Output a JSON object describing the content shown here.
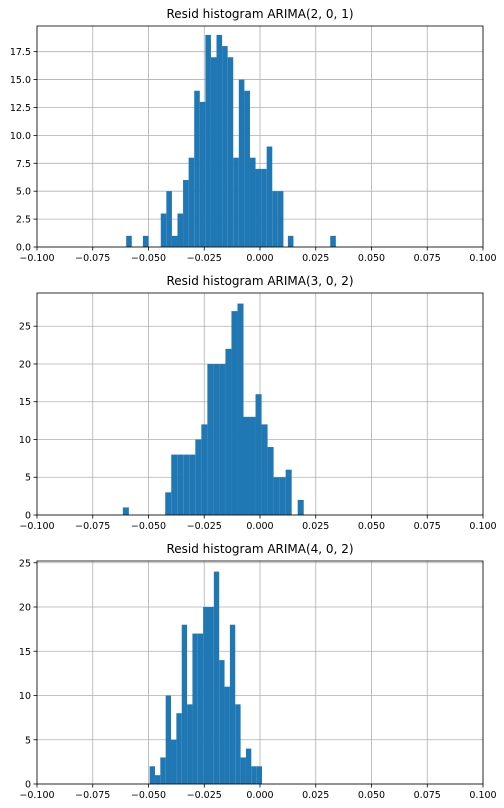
{
  "chart_data": [
    {
      "type": "bar",
      "title": "Resid histogram ARIMA(2, 0, 1)",
      "bar_color": "#1f77b4",
      "grid": true,
      "xlim": [
        -0.1,
        0.1
      ],
      "ylim": [
        0,
        19.8
      ],
      "xticks": [
        -0.1,
        -0.075,
        -0.05,
        -0.025,
        0.0,
        0.025,
        0.05,
        0.075,
        0.1
      ],
      "xtick_labels": [
        "−0.100",
        "−0.075",
        "−0.050",
        "−0.025",
        "0.000",
        "0.025",
        "0.050",
        "0.075",
        "0.100"
      ],
      "yticks": [
        0,
        2.5,
        5,
        7.5,
        10,
        12.5,
        15,
        17.5
      ],
      "ytick_labels": [
        "0.0",
        "2.5",
        "5.0",
        "7.5",
        "10.0",
        "12.5",
        "15.0",
        "17.5"
      ],
      "bin_width": 0.0025,
      "bins": [
        [
          -0.06,
          1
        ],
        [
          -0.0525,
          1
        ],
        [
          -0.0445,
          3
        ],
        [
          -0.042,
          5
        ],
        [
          -0.0395,
          1
        ],
        [
          -0.037,
          3
        ],
        [
          -0.0345,
          6
        ],
        [
          -0.032,
          8
        ],
        [
          -0.0295,
          14
        ],
        [
          -0.027,
          13
        ],
        [
          -0.0245,
          19
        ],
        [
          -0.022,
          17
        ],
        [
          -0.0195,
          19
        ],
        [
          -0.017,
          18
        ],
        [
          -0.0145,
          17
        ],
        [
          -0.012,
          8
        ],
        [
          -0.0095,
          15
        ],
        [
          -0.007,
          14
        ],
        [
          -0.0045,
          8
        ],
        [
          -0.002,
          7
        ],
        [
          0.0005,
          7
        ],
        [
          0.003,
          9
        ],
        [
          0.0055,
          5
        ],
        [
          0.008,
          5
        ],
        [
          0.0125,
          1
        ],
        [
          0.0315,
          1
        ]
      ]
    },
    {
      "type": "bar",
      "title": "Resid histogram ARIMA(3, 0, 2)",
      "bar_color": "#1f77b4",
      "grid": true,
      "xlim": [
        -0.1,
        0.1
      ],
      "ylim": [
        0,
        29.4
      ],
      "xticks": [
        -0.1,
        -0.075,
        -0.05,
        -0.025,
        0.0,
        0.025,
        0.05,
        0.075,
        0.1
      ],
      "xtick_labels": [
        "−0.100",
        "−0.075",
        "−0.050",
        "−0.025",
        "0.000",
        "0.025",
        "0.050",
        "0.075",
        "0.100"
      ],
      "yticks": [
        0,
        5,
        10,
        15,
        20,
        25
      ],
      "ytick_labels": [
        "0",
        "5",
        "10",
        "15",
        "20",
        "25"
      ],
      "bin_width": 0.0027,
      "bins": [
        [
          -0.0615,
          1
        ],
        [
          -0.0425,
          3
        ],
        [
          -0.0398,
          8
        ],
        [
          -0.0371,
          8
        ],
        [
          -0.0344,
          8
        ],
        [
          -0.0317,
          8
        ],
        [
          -0.029,
          10
        ],
        [
          -0.0263,
          12
        ],
        [
          -0.0236,
          20
        ],
        [
          -0.0209,
          20
        ],
        [
          -0.0182,
          20
        ],
        [
          -0.0155,
          22
        ],
        [
          -0.0128,
          27
        ],
        [
          -0.0101,
          28
        ],
        [
          -0.0074,
          13
        ],
        [
          -0.0047,
          13
        ],
        [
          -0.002,
          16
        ],
        [
          0.0007,
          12
        ],
        [
          0.0034,
          9
        ],
        [
          0.0061,
          5
        ],
        [
          0.0088,
          5
        ],
        [
          0.0115,
          6
        ],
        [
          0.0142,
          0
        ],
        [
          0.0169,
          2
        ]
      ]
    },
    {
      "type": "bar",
      "title": "Resid histogram ARIMA(4, 0, 2)",
      "bar_color": "#1f77b4",
      "grid": true,
      "xlim": [
        -0.1,
        0.1
      ],
      "ylim": [
        0,
        25.2
      ],
      "xticks": [
        -0.1,
        -0.075,
        -0.05,
        -0.025,
        0.0,
        0.025,
        0.05,
        0.075,
        0.1
      ],
      "xtick_labels": [
        "−0.100",
        "−0.075",
        "−0.050",
        "−0.025",
        "0.000",
        "0.025",
        "0.050",
        "0.075",
        "0.100"
      ],
      "yticks": [
        0,
        5,
        10,
        15,
        20,
        25
      ],
      "ytick_labels": [
        "0",
        "5",
        "10",
        "15",
        "20",
        "25"
      ],
      "bin_width": 0.0024,
      "bins": [
        [
          -0.0495,
          2
        ],
        [
          -0.0471,
          1
        ],
        [
          -0.0447,
          3
        ],
        [
          -0.0423,
          10
        ],
        [
          -0.0399,
          5
        ],
        [
          -0.0375,
          8
        ],
        [
          -0.0351,
          18
        ],
        [
          -0.0327,
          9
        ],
        [
          -0.0303,
          17
        ],
        [
          -0.0279,
          17
        ],
        [
          -0.0255,
          20
        ],
        [
          -0.0231,
          20
        ],
        [
          -0.0207,
          24
        ],
        [
          -0.0183,
          14
        ],
        [
          -0.0159,
          11
        ],
        [
          -0.0135,
          18
        ],
        [
          -0.0111,
          9
        ],
        [
          -0.0087,
          3
        ],
        [
          -0.0063,
          4
        ],
        [
          -0.0039,
          2
        ],
        [
          -0.0015,
          2
        ]
      ]
    }
  ]
}
